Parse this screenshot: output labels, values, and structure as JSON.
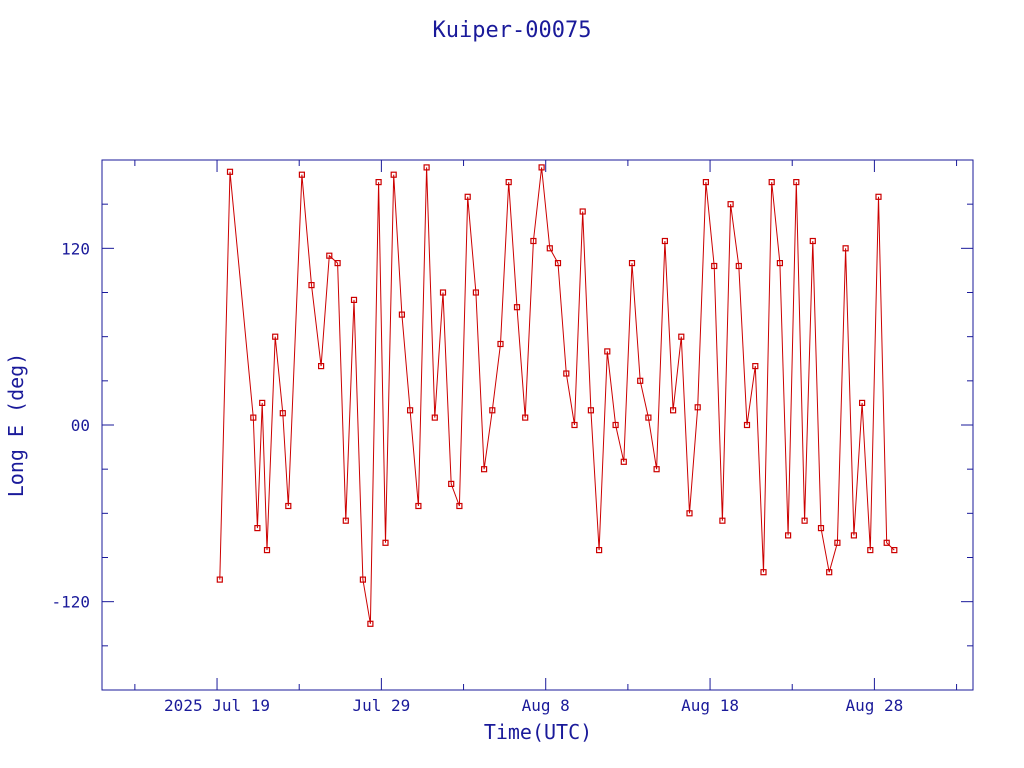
{
  "chart_data": {
    "type": "line",
    "title": "Kuiper-00075",
    "xlabel": "Time(UTC)",
    "ylabel": "Long E (deg)",
    "x_range": [
      "2025-07-12",
      "2025-09-03"
    ],
    "ylim": [
      -180,
      180
    ],
    "x_ticks": [
      {
        "date": "2025-07-19",
        "label": "2025 Jul 19"
      },
      {
        "date": "2025-07-29",
        "label": "Jul 29"
      },
      {
        "date": "2025-08-08",
        "label": "Aug  8"
      },
      {
        "date": "2025-08-18",
        "label": "Aug 18"
      },
      {
        "date": "2025-08-28",
        "label": "Aug 28"
      }
    ],
    "y_ticks": [
      {
        "value": 120,
        "label": "120"
      },
      {
        "value": 0,
        "label": "00"
      },
      {
        "value": -120,
        "label": "-120"
      }
    ],
    "x_minor_step_days": 5,
    "y_minor_step": 30,
    "grid": false,
    "colors": {
      "series": "#cc0000",
      "axes": "#1a1a9a"
    },
    "series": [
      {
        "x": [
          "2025-07-19T04:00",
          "2025-07-19T19:00",
          "2025-07-21T05:00",
          "2025-07-21T11:00",
          "2025-07-21T18:00",
          "2025-07-22T01:00",
          "2025-07-22T13:00",
          "2025-07-23T00:00",
          "2025-07-23T08:00",
          "2025-07-24T04:00",
          "2025-07-24T18:00",
          "2025-07-25T08:00",
          "2025-07-25T20:00",
          "2025-07-26T08:00",
          "2025-07-26T20:00",
          "2025-07-27T08:00",
          "2025-07-27T21:00",
          "2025-07-28T08:00",
          "2025-07-28T20:00",
          "2025-07-29T06:00",
          "2025-07-29T18:00",
          "2025-07-30T06:00",
          "2025-07-30T18:00",
          "2025-07-31T06:00",
          "2025-07-31T18:00",
          "2025-08-01T06:00",
          "2025-08-01T18:00",
          "2025-08-02T06:00",
          "2025-08-02T18:00",
          "2025-08-03T06:00",
          "2025-08-03T18:00",
          "2025-08-04T06:00",
          "2025-08-04T18:00",
          "2025-08-05T06:00",
          "2025-08-05T18:00",
          "2025-08-06T06:00",
          "2025-08-06T18:00",
          "2025-08-07T06:00",
          "2025-08-07T18:00",
          "2025-08-08T06:00",
          "2025-08-08T18:00",
          "2025-08-09T06:00",
          "2025-08-09T18:00",
          "2025-08-10T06:00",
          "2025-08-10T18:00",
          "2025-08-11T06:00",
          "2025-08-11T18:00",
          "2025-08-12T06:00",
          "2025-08-12T18:00",
          "2025-08-13T06:00",
          "2025-08-13T18:00",
          "2025-08-14T06:00",
          "2025-08-14T18:00",
          "2025-08-15T06:00",
          "2025-08-15T18:00",
          "2025-08-16T06:00",
          "2025-08-16T18:00",
          "2025-08-17T06:00",
          "2025-08-17T18:00",
          "2025-08-18T06:00",
          "2025-08-18T18:00",
          "2025-08-19T06:00",
          "2025-08-19T18:00",
          "2025-08-20T06:00",
          "2025-08-20T18:00",
          "2025-08-21T06:00",
          "2025-08-21T18:00",
          "2025-08-22T06:00",
          "2025-08-22T18:00",
          "2025-08-23T06:00",
          "2025-08-23T18:00",
          "2025-08-24T06:00",
          "2025-08-24T18:00",
          "2025-08-25T06:00",
          "2025-08-25T18:00",
          "2025-08-26T06:00",
          "2025-08-26T18:00",
          "2025-08-27T06:00",
          "2025-08-27T18:00",
          "2025-08-28T06:00",
          "2025-08-28T18:00",
          "2025-08-29T05:00"
        ],
        "values": [
          -105,
          172,
          5,
          -70,
          15,
          -85,
          60,
          8,
          -55,
          170,
          95,
          40,
          115,
          110,
          -65,
          85,
          -105,
          -135,
          165,
          -80,
          170,
          75,
          10,
          -55,
          175,
          5,
          90,
          -40,
          -55,
          155,
          90,
          -30,
          10,
          55,
          165,
          80,
          5,
          125,
          175,
          120,
          110,
          35,
          0,
          145,
          10,
          -85,
          50,
          0,
          -25,
          110,
          30,
          5,
          -30,
          125,
          10,
          60,
          -60,
          12,
          165,
          108,
          -65,
          150,
          108,
          0,
          40,
          -100,
          165,
          110,
          -75,
          165,
          -65,
          125,
          -70,
          -100,
          -80,
          120,
          -75,
          15,
          -85,
          155,
          -80,
          -85
        ]
      }
    ]
  }
}
